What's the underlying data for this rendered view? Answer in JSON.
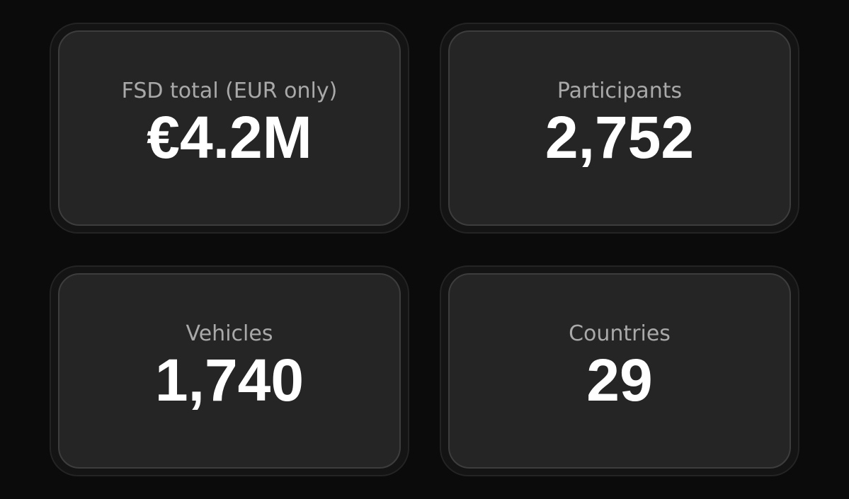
{
  "cards": [
    {
      "label": "FSD total (EUR only)",
      "value": "€4.2M"
    },
    {
      "label": "Participants",
      "value": "2,752"
    },
    {
      "label": "Vehicles",
      "value": "1,740"
    },
    {
      "label": "Countries",
      "value": "29"
    }
  ]
}
